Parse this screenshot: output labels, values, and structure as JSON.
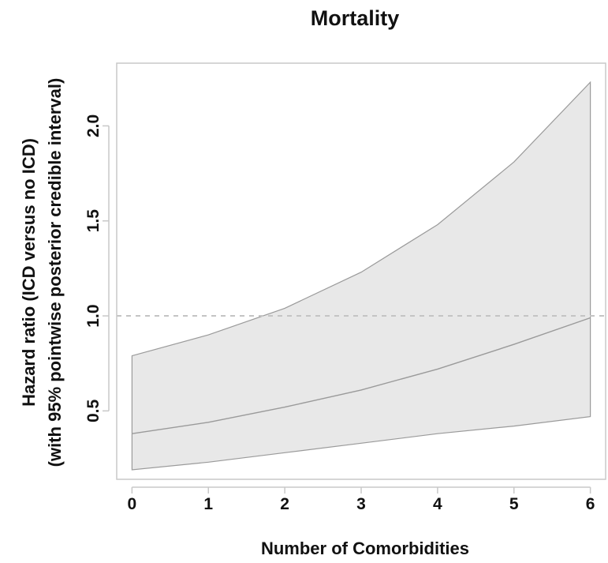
{
  "chart_data": {
    "type": "area",
    "title": "Mortality",
    "xlabel": "Number of Comorbidities",
    "ylabel_lines": [
      "Hazard ratio (ICD versus no ICD)",
      "(with 95% pointwise posterior credible interval)"
    ],
    "x": [
      0,
      1,
      2,
      3,
      4,
      5,
      6
    ],
    "series": [
      {
        "role": "estimate",
        "values": [
          0.38,
          0.44,
          0.52,
          0.61,
          0.72,
          0.85,
          0.99
        ]
      },
      {
        "role": "lower",
        "values": [
          0.19,
          0.23,
          0.28,
          0.33,
          0.38,
          0.42,
          0.47
        ]
      },
      {
        "role": "upper",
        "values": [
          0.79,
          0.9,
          1.04,
          1.23,
          1.48,
          1.81,
          2.23
        ]
      }
    ],
    "reference_line": {
      "y": 1.0,
      "style": "dashed"
    },
    "xlim": [
      -0.2,
      6.2
    ],
    "ylim": [
      0.14,
      2.33
    ],
    "xticks": [
      0,
      1,
      2,
      3,
      4,
      5,
      6
    ],
    "yticks": [
      0.5,
      1.0,
      1.5,
      2.0
    ],
    "ytick_labels": [
      "0.5",
      "1.0",
      "1.5",
      "2.0"
    ],
    "grid": false,
    "colors": {
      "band_fill": "#e8e8e8",
      "band_edge": "#9a9a9a",
      "line": "#9a9a9a",
      "reference": "#c4c4c4",
      "frame": "#c8c8c8",
      "text": "#111111"
    }
  }
}
